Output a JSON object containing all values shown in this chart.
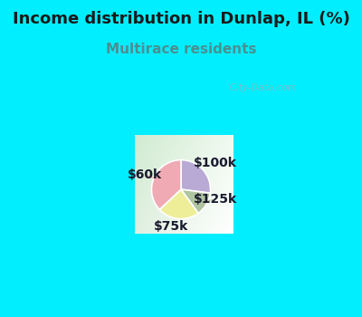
{
  "title": "Income distribution in Dunlap, IL (%)",
  "subtitle": "Multirace residents",
  "title_color": "#1a1a1a",
  "subtitle_color": "#4a9090",
  "top_bg_color": "#00eeff",
  "chart_bg_color": "#e8f5ee",
  "slices": [
    {
      "label": "$100k",
      "value": 27,
      "color": "#b8aad4"
    },
    {
      "label": "$125k",
      "value": 13,
      "color": "#afc4a0"
    },
    {
      "label": "$75k",
      "value": 23,
      "color": "#eeee99"
    },
    {
      "label": "$60k",
      "value": 37,
      "color": "#f0aab4"
    }
  ],
  "watermark": "  City-Data.com",
  "label_fontsize": 10,
  "title_fontsize": 13,
  "subtitle_fontsize": 11,
  "label_color": "#1a1a2e"
}
